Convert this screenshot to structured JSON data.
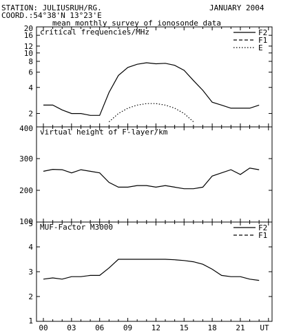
{
  "header": {
    "station": "STATION: JULIUSRUH/RG.",
    "date": "JANUARY 2004",
    "coord": "COORD.:54°38'N 13°23'E",
    "subtitle": "mean monthly survey of ionosonde data"
  },
  "chart_data": [
    {
      "type": "line",
      "title": "critical frequencies/MHz",
      "yscale": "log",
      "ylim": [
        1.4,
        20
      ],
      "yticks": [
        2,
        4,
        6,
        8,
        10,
        12,
        16,
        20
      ],
      "xlim": [
        0,
        24
      ],
      "xticks": [
        "00",
        "03",
        "06",
        "09",
        "12",
        "15",
        "18",
        "21",
        "UT"
      ],
      "legend": "top-right",
      "series": [
        {
          "name": "F2",
          "style": "solid",
          "x": [
            0,
            1,
            2,
            3,
            4,
            5,
            6,
            7,
            8,
            9,
            10,
            11,
            12,
            13,
            14,
            15,
            16,
            17,
            18,
            19,
            20,
            21,
            22,
            23
          ],
          "y": [
            2.5,
            2.5,
            2.2,
            2.0,
            2.0,
            1.9,
            1.9,
            3.5,
            5.5,
            6.8,
            7.4,
            7.7,
            7.5,
            7.6,
            7.2,
            6.3,
            4.8,
            3.7,
            2.7,
            2.5,
            2.3,
            2.3,
            2.3,
            2.5
          ]
        },
        {
          "name": "F1",
          "style": "dashed",
          "x": [],
          "y": []
        },
        {
          "name": "E",
          "style": "dotted",
          "x": [
            7,
            8,
            9,
            10,
            11,
            12,
            13,
            14,
            15,
            16
          ],
          "y": [
            1.6,
            2.0,
            2.3,
            2.5,
            2.6,
            2.6,
            2.5,
            2.3,
            2.0,
            1.6
          ]
        }
      ]
    },
    {
      "type": "line",
      "title": "virtual height of F-layer/km",
      "ylim": [
        100,
        400
      ],
      "yticks": [
        100,
        200,
        300,
        400
      ],
      "xlim": [
        0,
        24
      ],
      "xticks": [
        "00",
        "03",
        "06",
        "09",
        "12",
        "15",
        "18",
        "21",
        "UT"
      ],
      "series": [
        {
          "name": "",
          "style": "solid",
          "x": [
            0,
            1,
            2,
            3,
            4,
            5,
            6,
            7,
            8,
            9,
            10,
            11,
            12,
            13,
            14,
            15,
            16,
            17,
            18,
            19,
            20,
            21,
            22,
            23
          ],
          "y": [
            260,
            266,
            265,
            255,
            265,
            260,
            255,
            225,
            210,
            210,
            215,
            215,
            210,
            215,
            210,
            205,
            205,
            210,
            245,
            255,
            265,
            250,
            270,
            265
          ]
        }
      ]
    },
    {
      "type": "line",
      "title": "MUF-Factor M3000",
      "ylim": [
        1,
        5
      ],
      "yticks": [
        1,
        2,
        3,
        4,
        5
      ],
      "xlim": [
        0,
        24
      ],
      "xticks": [
        "00",
        "03",
        "06",
        "09",
        "12",
        "15",
        "18",
        "21",
        "UT"
      ],
      "legend": "top-right",
      "series": [
        {
          "name": "F2",
          "style": "solid",
          "x": [
            0,
            1,
            2,
            3,
            4,
            5,
            6,
            7,
            8,
            9,
            10,
            11,
            12,
            13,
            14,
            15,
            16,
            17,
            18,
            19,
            20,
            21,
            22,
            23
          ],
          "y": [
            2.7,
            2.75,
            2.7,
            2.8,
            2.8,
            2.85,
            2.85,
            3.15,
            3.5,
            3.5,
            3.5,
            3.5,
            3.5,
            3.5,
            3.48,
            3.45,
            3.4,
            3.3,
            3.1,
            2.85,
            2.8,
            2.8,
            2.7,
            2.65
          ]
        },
        {
          "name": "F1",
          "style": "dashed",
          "x": [],
          "y": []
        }
      ]
    }
  ]
}
